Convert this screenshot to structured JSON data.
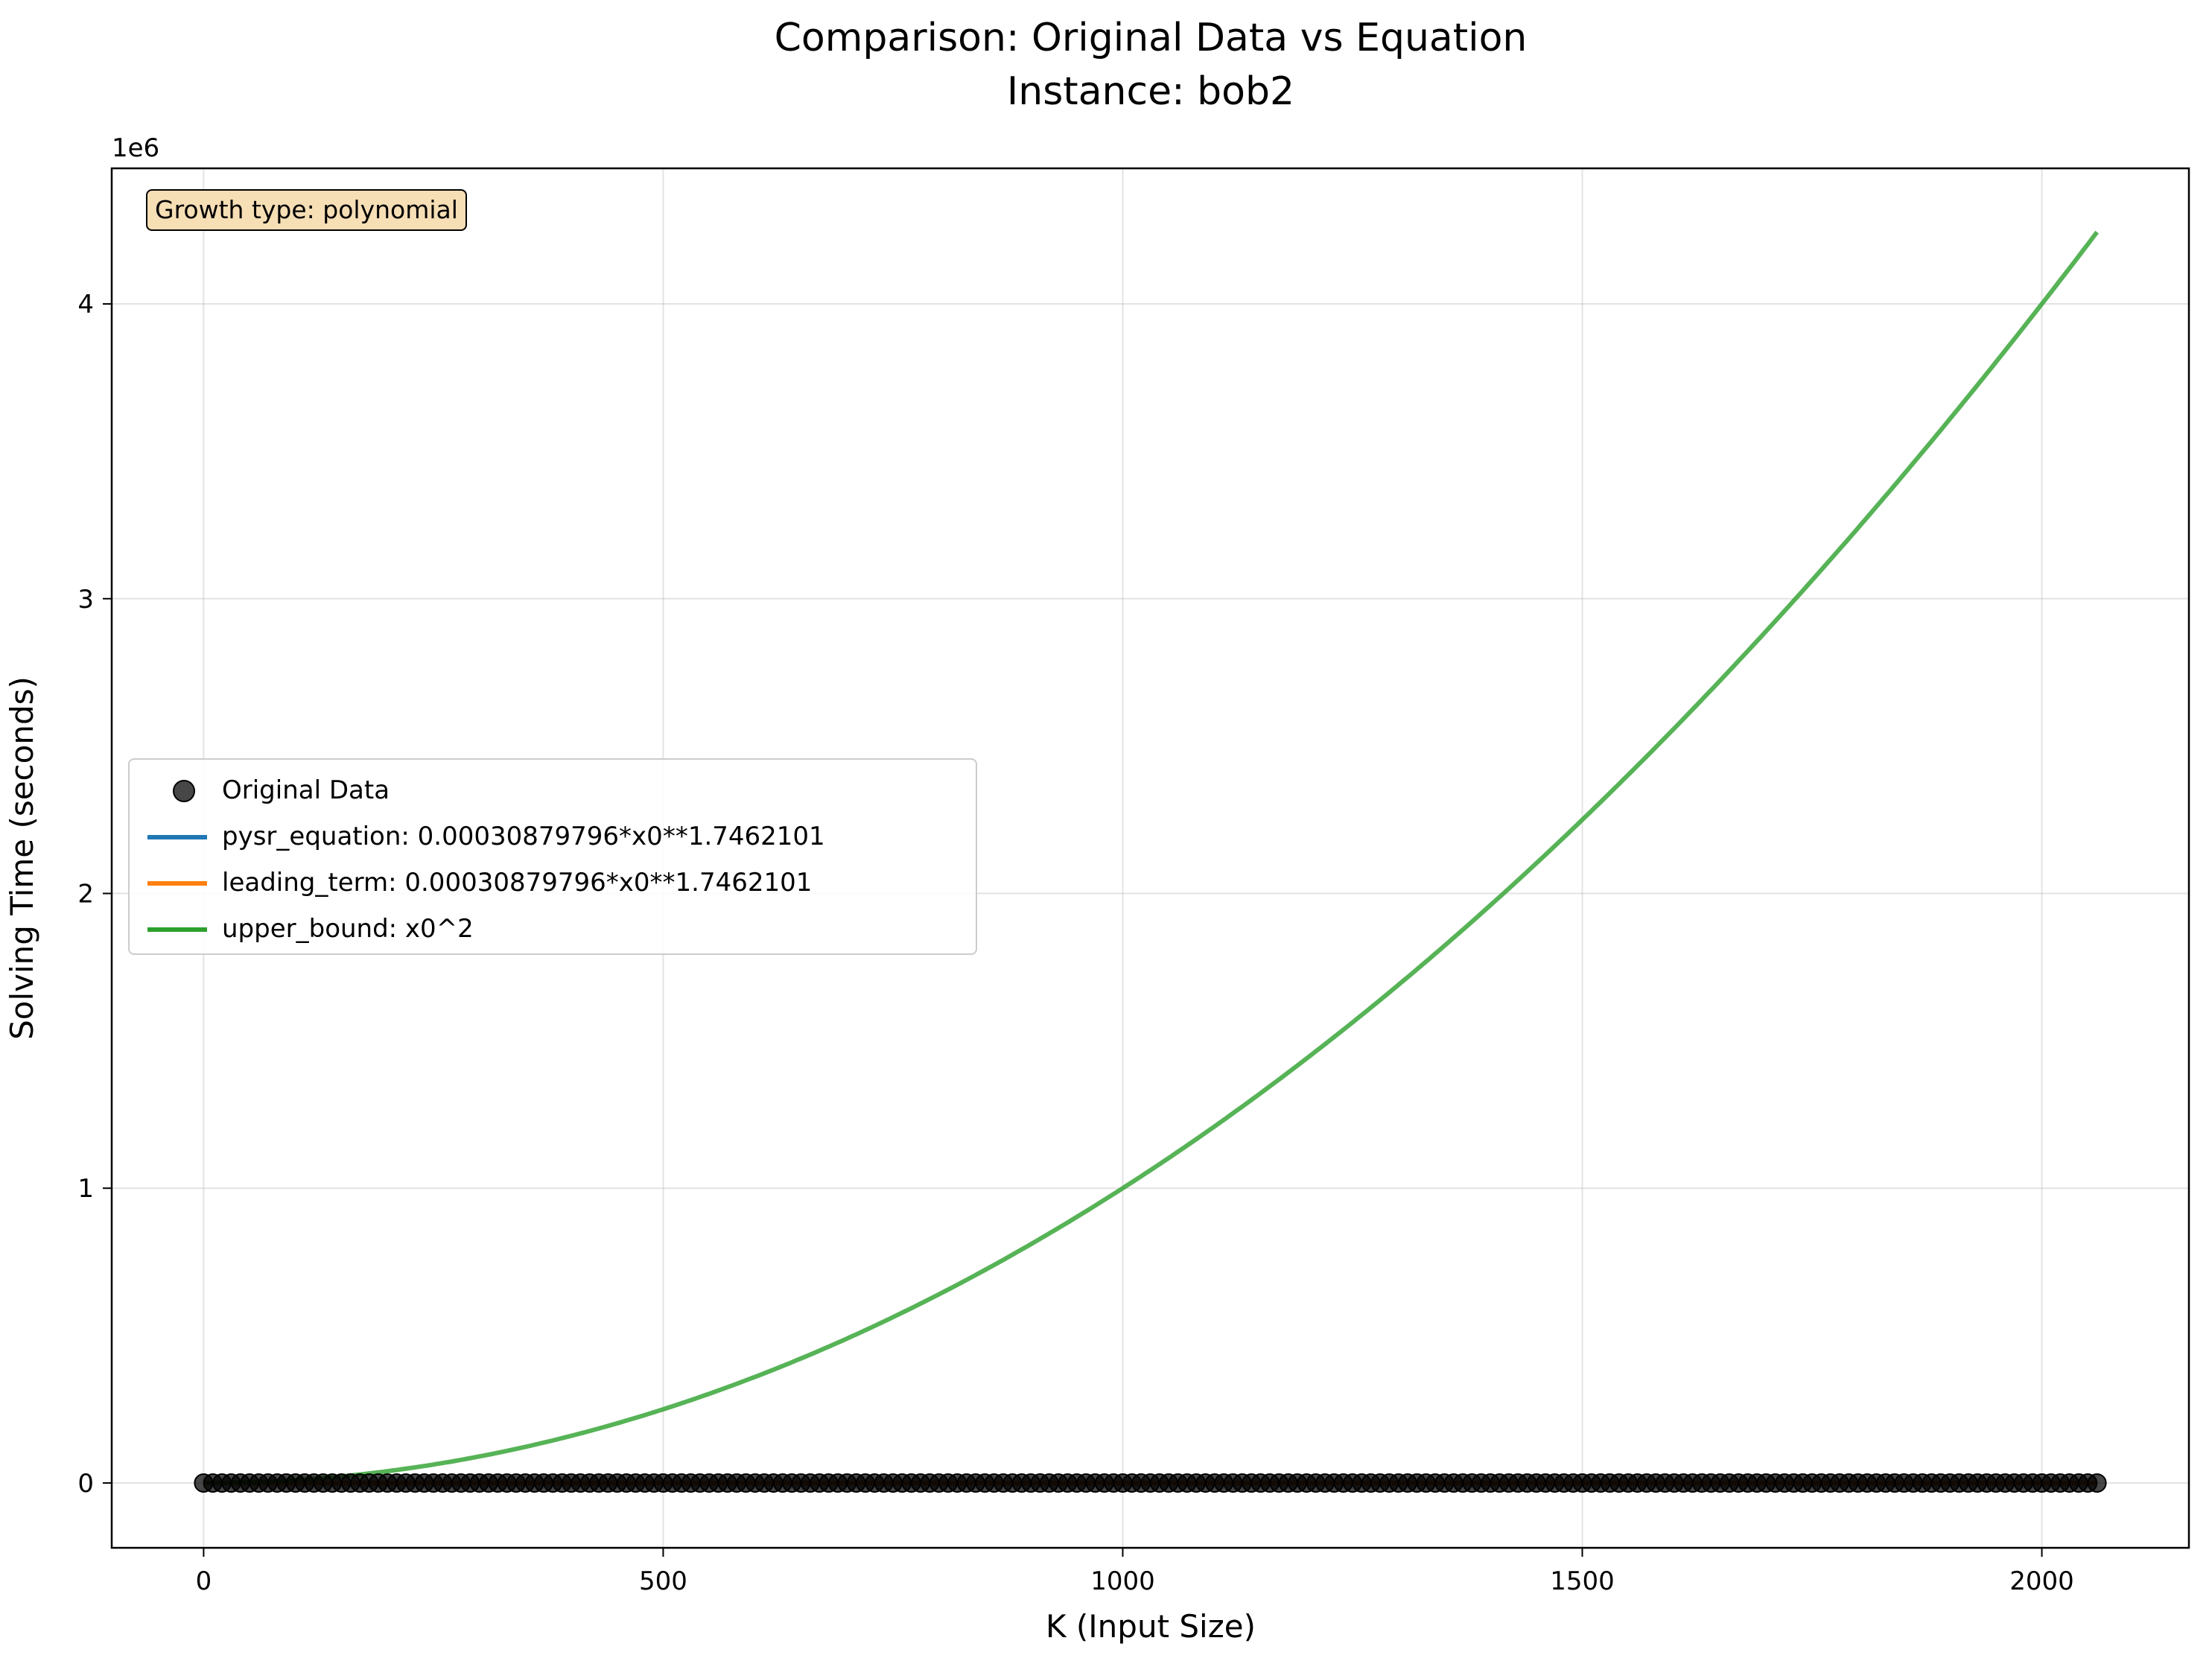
{
  "chart_data": {
    "type": "line",
    "title": "Comparison: Original Data vs Equation",
    "subtitle": "Instance: bob2",
    "xlabel": "K (Input Size)",
    "ylabel": "Solving Time (seconds)",
    "y_multiplier_label": "1e6",
    "xlim": [
      -100,
      2160
    ],
    "ylim": [
      -0.22,
      4.46
    ],
    "y_scale_factor": 1000000,
    "x_ticks": [
      0,
      500,
      1000,
      1500,
      2000
    ],
    "y_ticks": [
      0,
      1,
      2,
      3,
      4
    ],
    "grid": true,
    "legend_placement": "center-left",
    "annotation": "Growth type: polynomial",
    "series": [
      {
        "name": "Original Data",
        "kind": "scatter",
        "color": "#000000",
        "x_start": 0,
        "x_end": 2060,
        "x_step": 10,
        "y_value": 0
      },
      {
        "name": "pysr_equation: 0.00030879796*x0**1.7462101",
        "kind": "line",
        "color": "#1f77b4",
        "coefficient": 0.00030879796,
        "exponent": 1.7462101
      },
      {
        "name": "leading_term: 0.00030879796*x0**1.7462101",
        "kind": "line",
        "color": "#ff7f0e",
        "coefficient": 0.00030879796,
        "exponent": 1.7462101
      },
      {
        "name": "upper_bound: x0^2",
        "kind": "line",
        "color": "#2ca02c",
        "coefficient": 1,
        "exponent": 2
      }
    ]
  }
}
